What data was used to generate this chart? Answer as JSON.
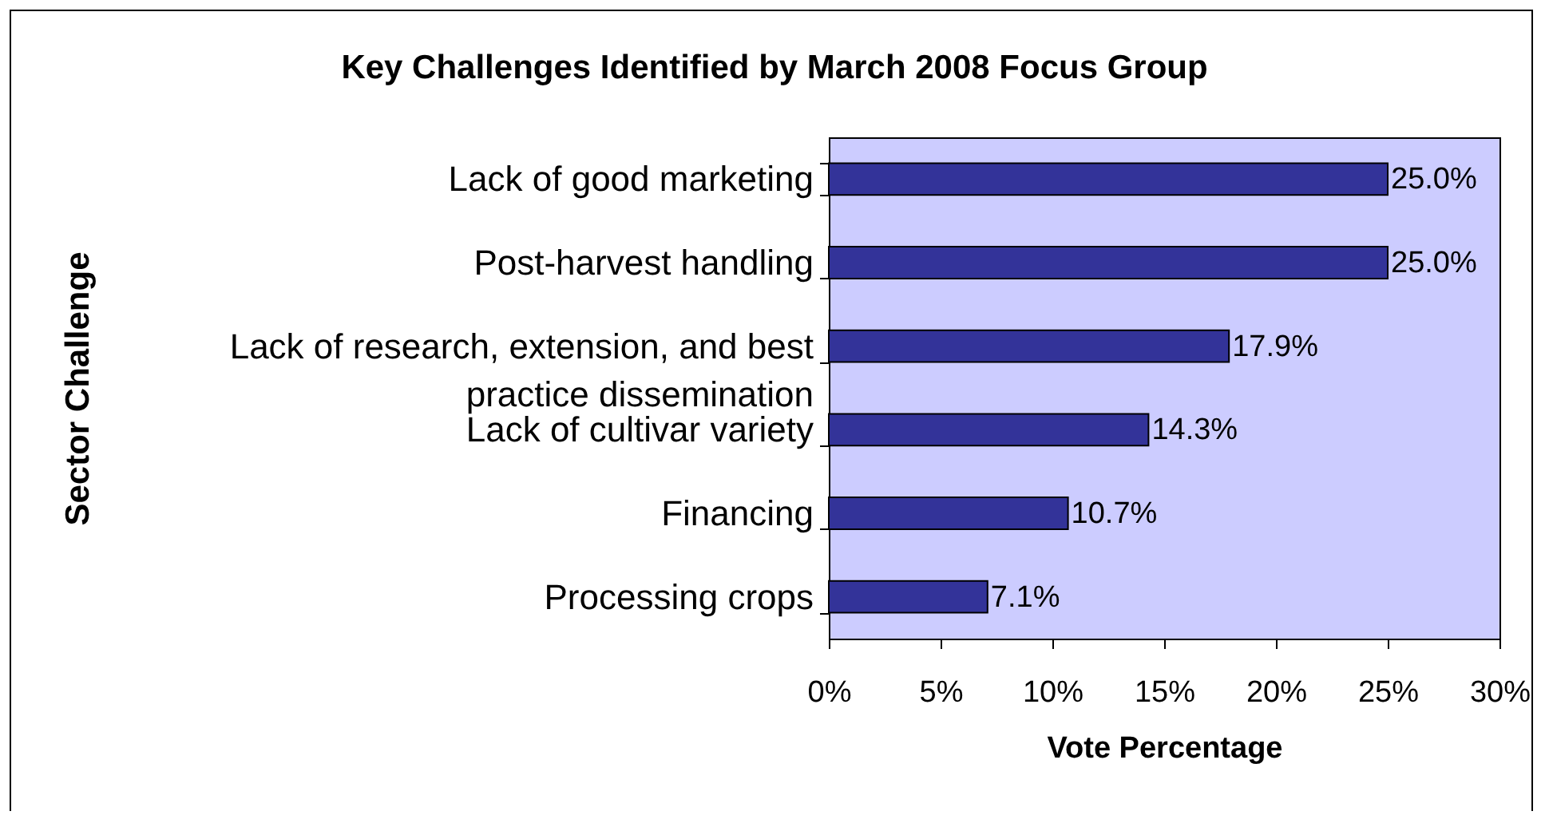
{
  "chart_data": {
    "type": "bar",
    "orientation": "horizontal",
    "title": "Key Challenges Identified by March 2008 Focus Group",
    "xlabel": "Vote Percentage",
    "ylabel": "Sector Challenge",
    "categories": [
      "Lack of good marketing",
      "Post-harvest handling",
      "Lack of research, extension, and best practice dissemination",
      "Lack of cultivar variety",
      "Financing",
      "Processing crops"
    ],
    "values": [
      25.0,
      25.0,
      17.9,
      14.3,
      10.7,
      7.1
    ],
    "value_labels": [
      "25.0%",
      "25.0%",
      "17.9%",
      "14.3%",
      "10.7%",
      "7.1%"
    ],
    "color": "#333399",
    "xlim": [
      0,
      30
    ],
    "xticks": [
      {
        "value": 0,
        "label": "0%"
      },
      {
        "value": 5,
        "label": "5%"
      },
      {
        "value": 10,
        "label": "10%"
      },
      {
        "value": 15,
        "label": "15%"
      },
      {
        "value": 20,
        "label": "20%"
      },
      {
        "value": 25,
        "label": "25%"
      },
      {
        "value": 30,
        "label": "30%"
      }
    ]
  }
}
